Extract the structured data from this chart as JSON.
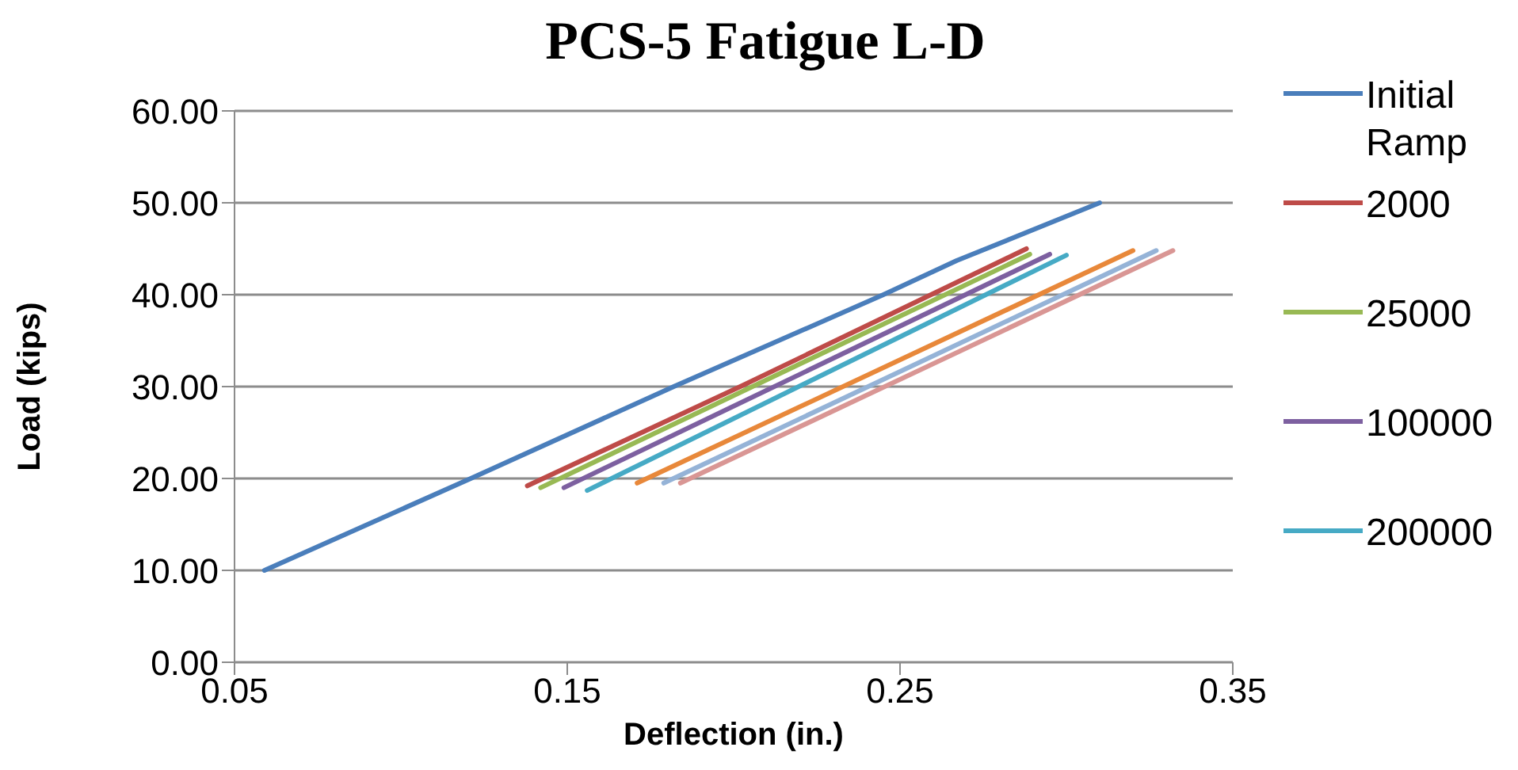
{
  "chart_data": {
    "type": "line",
    "title": "PCS-5 Fatigue L-D",
    "xlabel": "Deflection (in.)",
    "ylabel": "Load (kips)",
    "xlim": [
      0.05,
      0.35
    ],
    "xticks": [
      0.05,
      0.15,
      0.25,
      0.35
    ],
    "ylim": [
      0,
      60
    ],
    "yticks": [
      {
        "value": 0,
        "label": "0.00"
      },
      {
        "value": 10,
        "label": "10.00"
      },
      {
        "value": 20,
        "label": "20.00"
      },
      {
        "value": 30,
        "label": "30.00"
      },
      {
        "value": 40,
        "label": "40.00"
      },
      {
        "value": 50,
        "label": "50.00"
      },
      {
        "value": 60,
        "label": "60.00"
      }
    ],
    "grid": "y",
    "legend": "right",
    "marker": "none",
    "line_style": "solid",
    "series": [
      {
        "name": "Initial Ramp",
        "color": "#4a7ebb",
        "x": [
          0.059,
          0.121,
          0.182,
          0.245,
          0.267,
          0.31
        ],
        "values": [
          10,
          20,
          30,
          40,
          43.7,
          50
        ]
      },
      {
        "name": "2000",
        "color": "#be4b48",
        "x": [
          0.138,
          0.202,
          0.288
        ],
        "values": [
          19.2,
          30,
          45
        ]
      },
      {
        "name": "25000",
        "color": "#98b954",
        "x": [
          0.142,
          0.289
        ],
        "values": [
          19,
          44.4
        ]
      },
      {
        "name": "100000",
        "color": "#7d60a0",
        "x": [
          0.149,
          0.295
        ],
        "values": [
          19,
          44.4
        ]
      },
      {
        "name": "200000",
        "color": "#46aac5",
        "x": [
          0.156,
          0.3
        ],
        "values": [
          18.7,
          44.3
        ]
      },
      {
        "color": "#e8883a",
        "x": [
          0.171,
          0.32
        ],
        "values": [
          19.5,
          44.8
        ]
      },
      {
        "color": "#95b3d7",
        "x": [
          0.179,
          0.327
        ],
        "values": [
          19.5,
          44.8
        ]
      },
      {
        "color": "#d99694",
        "x": [
          0.184,
          0.332
        ],
        "values": [
          19.5,
          44.8
        ]
      }
    ]
  }
}
